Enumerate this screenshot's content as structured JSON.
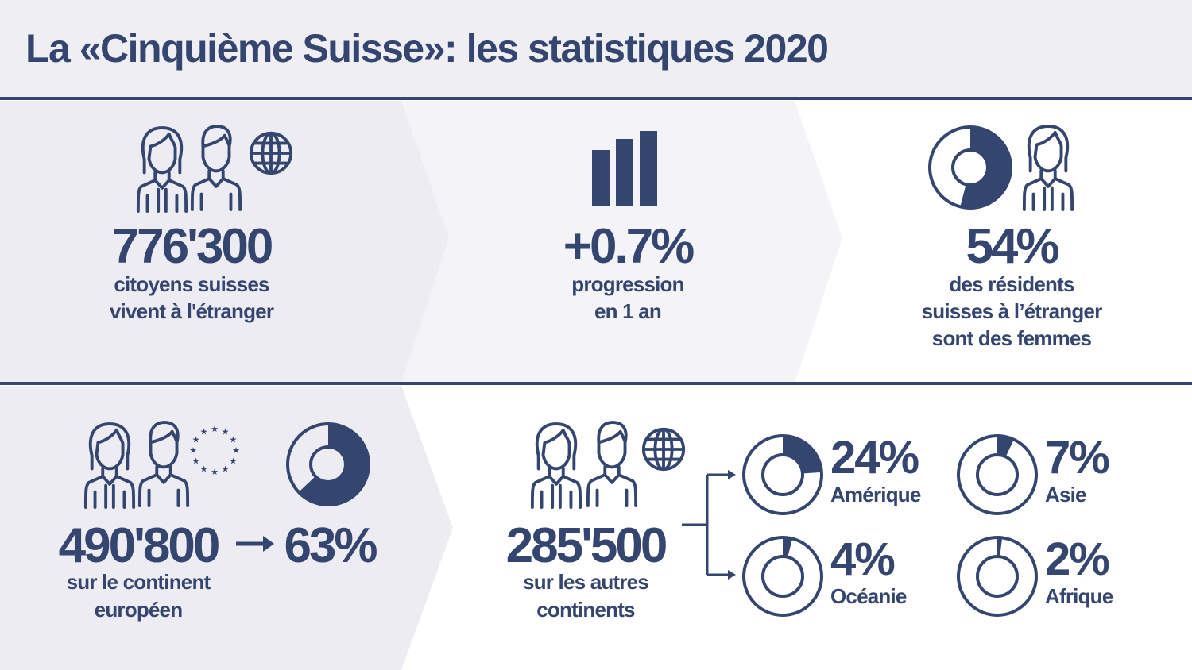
{
  "title": "La «Cinquième Suisse»: les statistiques 2020",
  "colors": {
    "primary": "#34466f",
    "bg_light": "#ececf2",
    "bg_mid": "#f4f4f8"
  },
  "stats": {
    "total": {
      "value": "776'300",
      "line1": "citoyens suisses",
      "line2": "vivent à l'étranger"
    },
    "growth": {
      "value": "+0.7%",
      "line1": "progression",
      "line2": "en 1 an"
    },
    "women": {
      "value": "54%",
      "line1": "des résidents",
      "line2": "suisses à l’étranger",
      "line3": "sont des femmes",
      "fraction": 0.54
    },
    "europe": {
      "value": "490'800",
      "share": "63%",
      "fraction": 0.63,
      "line1": "sur le continent",
      "line2": "européen"
    },
    "others": {
      "value": "285'500",
      "line1": "sur les autres",
      "line2": "continents"
    }
  },
  "continents": [
    {
      "pct": "24%",
      "label": "Amérique",
      "fraction": 0.24
    },
    {
      "pct": "7%",
      "label": "Asie",
      "fraction": 0.07
    },
    {
      "pct": "4%",
      "label": "Océanie",
      "fraction": 0.04
    },
    {
      "pct": "2%",
      "label": "Afrique",
      "fraction": 0.02
    }
  ]
}
